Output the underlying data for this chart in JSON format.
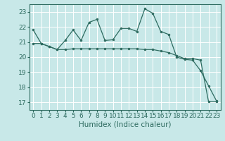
{
  "title": "",
  "xlabel": "Humidex (Indice chaleur)",
  "background_color": "#c8e8e8",
  "line_color": "#2e6b60",
  "grid_color": "#ffffff",
  "x_ticks": [
    0,
    1,
    2,
    3,
    4,
    5,
    6,
    7,
    8,
    9,
    10,
    11,
    12,
    13,
    14,
    15,
    16,
    17,
    18,
    19,
    20,
    21,
    22,
    23
  ],
  "ylim": [
    16.5,
    23.5
  ],
  "xlim": [
    -0.5,
    23.5
  ],
  "yticks": [
    17,
    18,
    19,
    20,
    21,
    22,
    23
  ],
  "series1_x": [
    0,
    1,
    2,
    3,
    4,
    5,
    6,
    7,
    8,
    9,
    10,
    11,
    12,
    13,
    14,
    15,
    16,
    17,
    18,
    19,
    20,
    21,
    22,
    23
  ],
  "series1_y": [
    21.8,
    20.9,
    20.7,
    20.5,
    21.1,
    21.8,
    21.1,
    22.3,
    22.5,
    21.1,
    21.15,
    21.9,
    21.9,
    21.7,
    23.2,
    22.9,
    21.7,
    21.5,
    20.0,
    19.85,
    19.8,
    19.1,
    18.1,
    17.1
  ],
  "series2_x": [
    0,
    1,
    2,
    3,
    4,
    5,
    6,
    7,
    8,
    9,
    10,
    11,
    12,
    13,
    14,
    15,
    16,
    17,
    18,
    19,
    20,
    21,
    22,
    23
  ],
  "series2_y": [
    20.9,
    20.9,
    20.7,
    20.5,
    20.5,
    20.55,
    20.55,
    20.55,
    20.55,
    20.55,
    20.55,
    20.55,
    20.55,
    20.55,
    20.5,
    20.5,
    20.4,
    20.3,
    20.1,
    19.9,
    19.9,
    19.8,
    17.05,
    17.05
  ],
  "tick_fontsize": 6.5,
  "xlabel_fontsize": 7.5
}
